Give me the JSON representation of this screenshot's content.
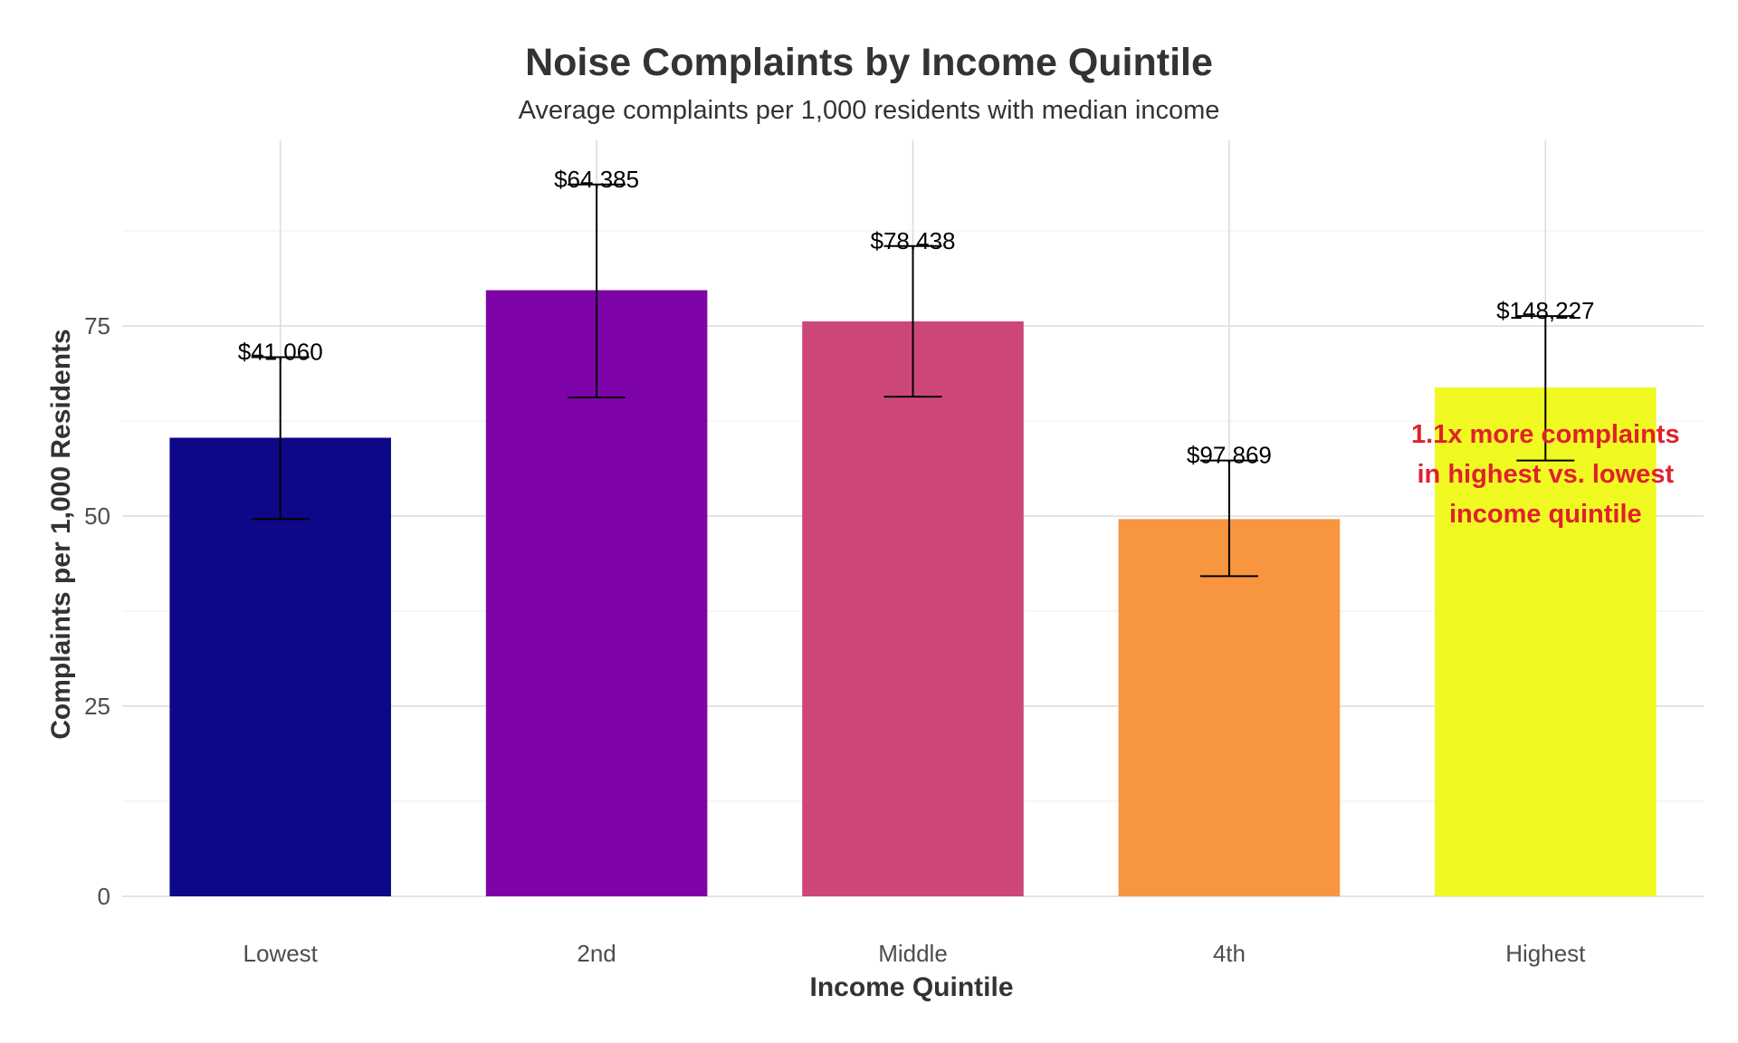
{
  "chart_data": {
    "type": "bar",
    "title": "Noise Complaints by Income Quintile",
    "subtitle": "Average complaints per 1,000 residents with median income",
    "xlabel": "Income Quintile",
    "ylabel": "Complaints per 1,000 Residents",
    "categories": [
      "Lowest",
      "2nd",
      "Middle",
      "4th",
      "Highest"
    ],
    "values": [
      60.3,
      79.7,
      75.6,
      49.6,
      66.9
    ],
    "error_low": [
      49.6,
      65.6,
      65.7,
      42.1,
      57.3
    ],
    "error_high": [
      70.9,
      93.6,
      85.5,
      57.3,
      76.3
    ],
    "bar_labels": [
      "$41,060",
      "$64,385",
      "$78,438",
      "$97,869",
      "$148,227"
    ],
    "colors": [
      "#0d0887",
      "#7e03a8",
      "#cc4778",
      "#f89540",
      "#f0f921"
    ],
    "ylim": [
      0,
      100
    ],
    "yticks": [
      0,
      25,
      50,
      75
    ],
    "grid": true,
    "annotation": {
      "lines": [
        "1.1x more complaints",
        "in highest vs. lowest",
        "income quintile"
      ],
      "color": "#e0202e"
    }
  }
}
